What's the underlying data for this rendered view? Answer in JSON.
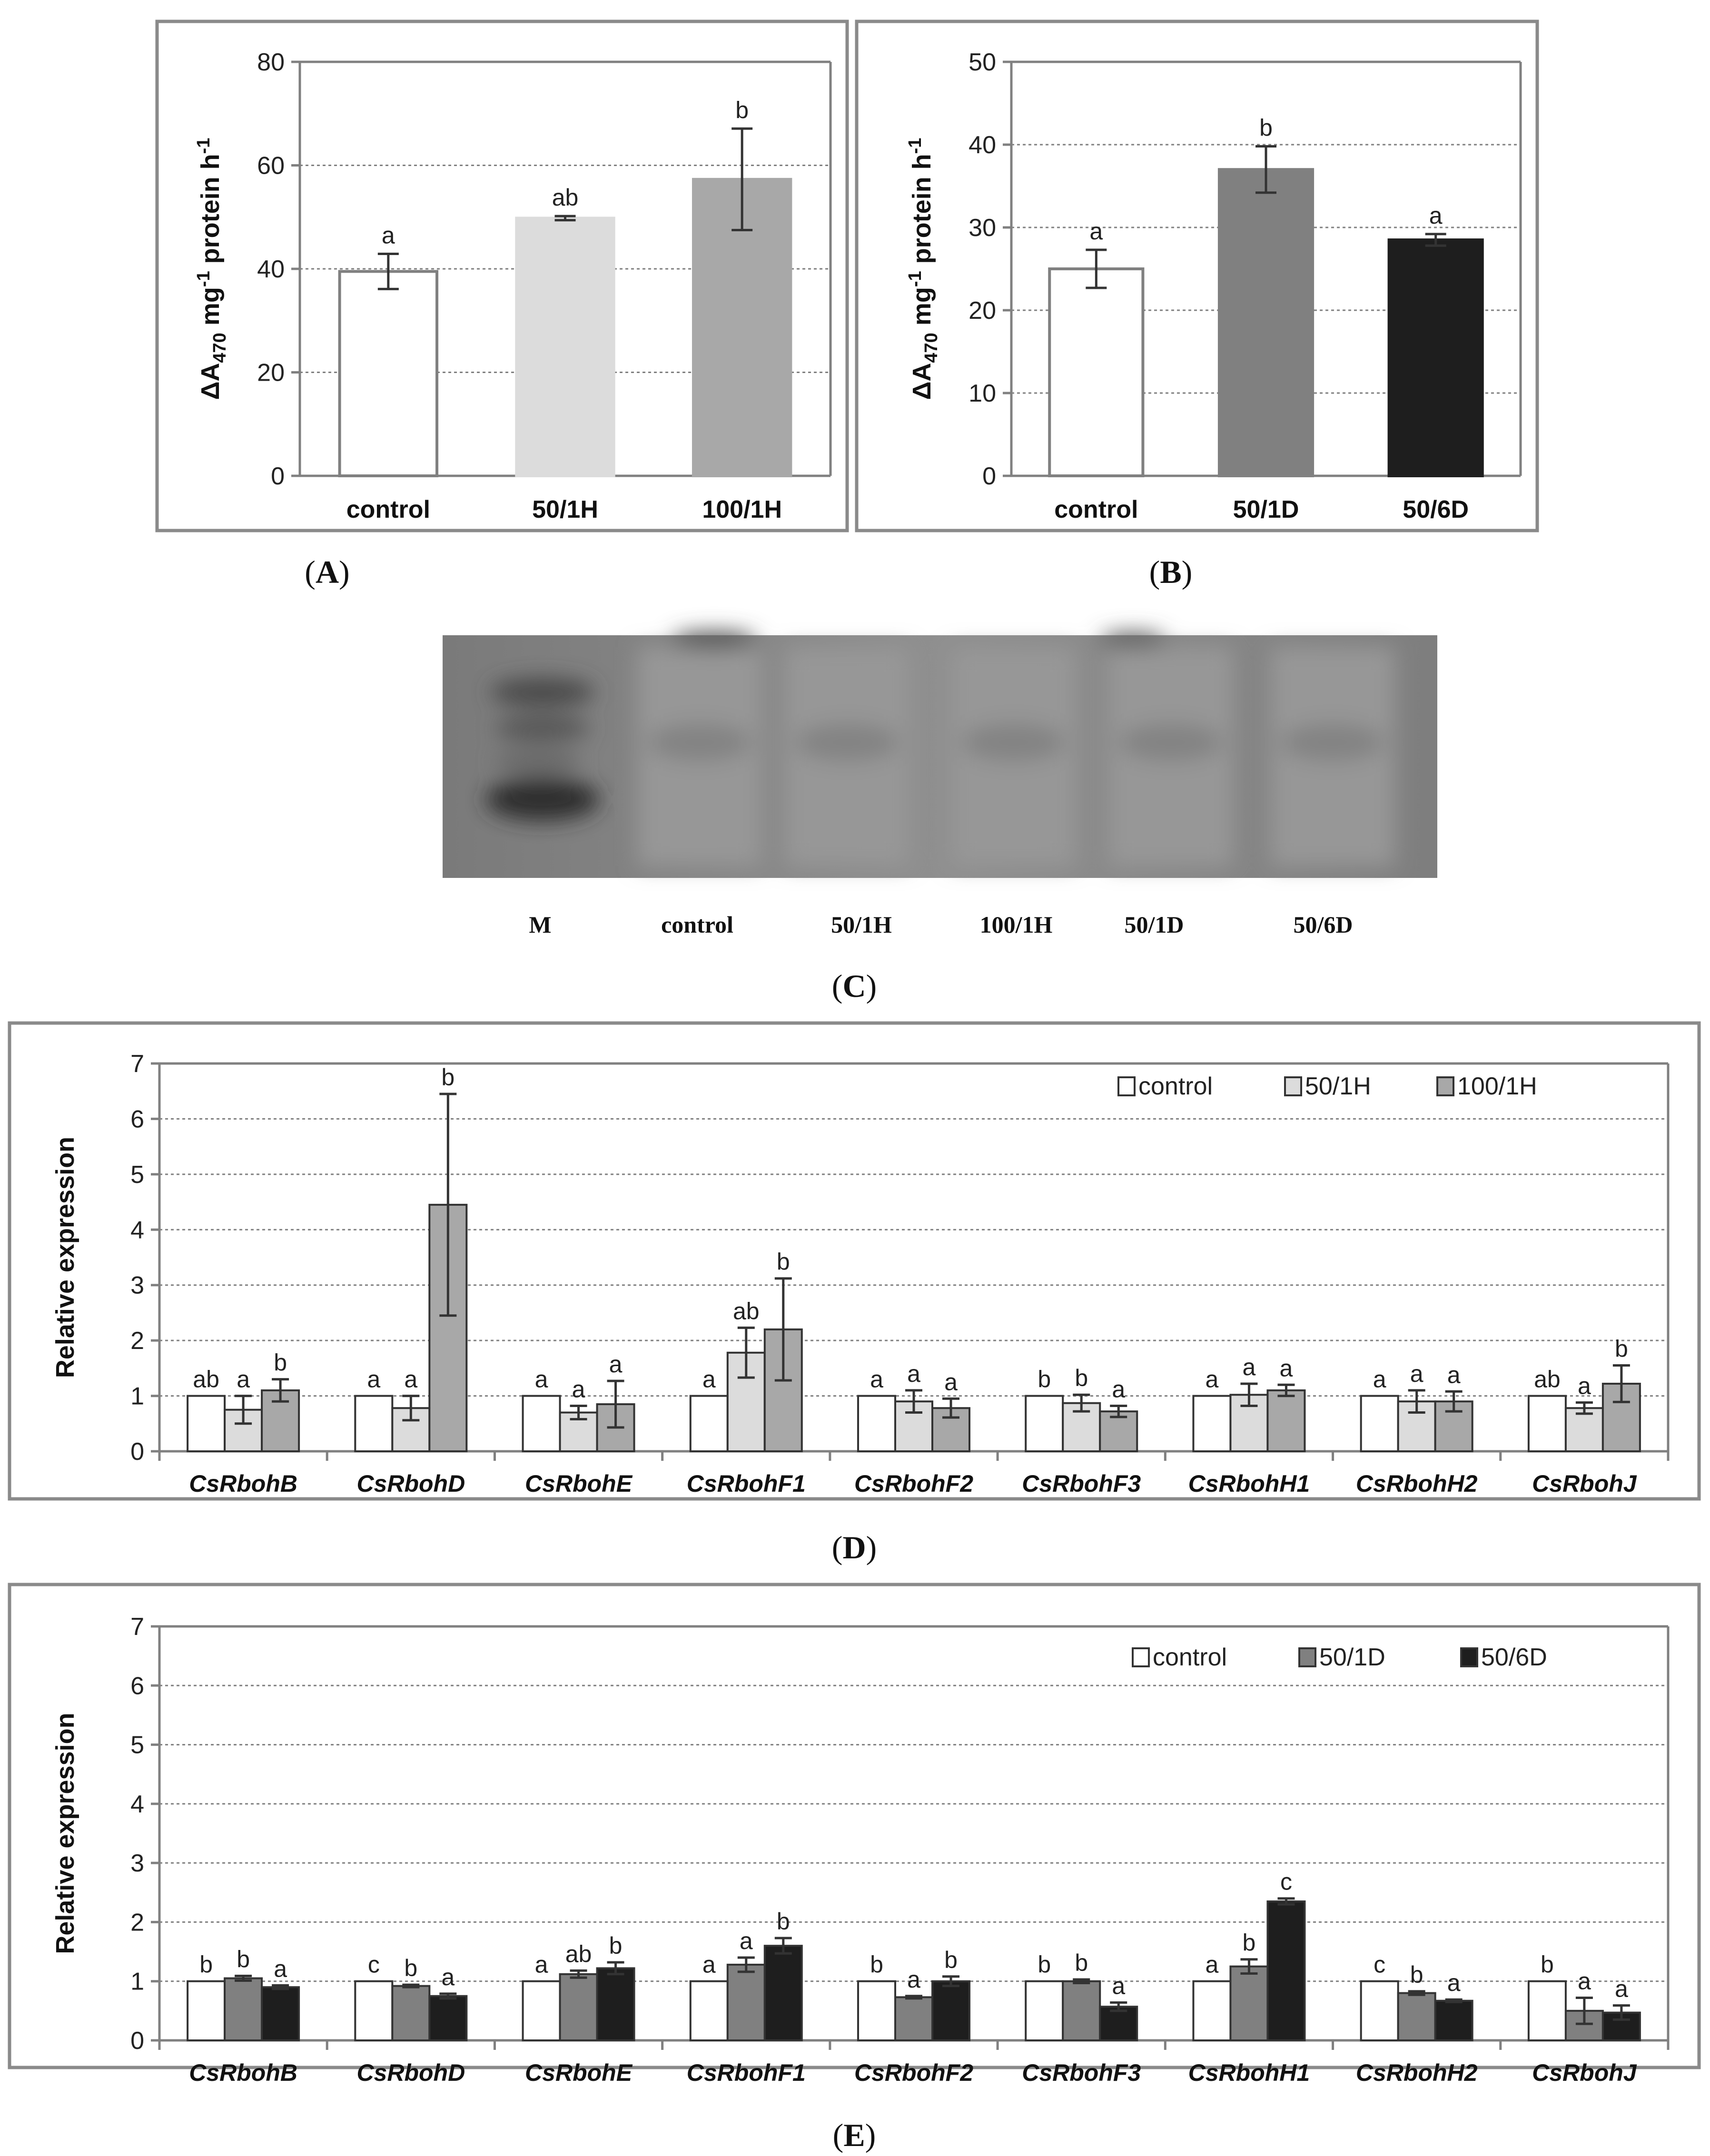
{
  "colors": {
    "control": "#ffffff",
    "h50": "#dcdcdc",
    "h100": "#a8a8a8",
    "d50": "#808080",
    "d6": "#1e1e1e",
    "gel_background": "#8c8c8c",
    "gel_band": "#3c3c3c"
  },
  "chart_data": [
    {
      "id": "A",
      "type": "bar",
      "caption": "A",
      "ylabel_main": "ΔA",
      "ylabel_sub": "470",
      "ylabel_rest1": " mg",
      "ylabel_sup": "-1",
      "ylabel_rest2": " protein h",
      "ylabel_sup2": "-1",
      "ylim": [
        0,
        80
      ],
      "yticks": [
        0,
        20,
        40,
        60,
        80
      ],
      "categories": [
        "control",
        "50/1H",
        "100/1H"
      ],
      "values": [
        39.5,
        49.8,
        57.3
      ],
      "errors": [
        3.4,
        0.4,
        9.8
      ],
      "letters": [
        "a",
        "ab",
        "b"
      ],
      "color_keys": [
        "control",
        "h50",
        "h100"
      ]
    },
    {
      "id": "B",
      "type": "bar",
      "caption": "B",
      "ylabel_main": "ΔA",
      "ylabel_sub": "470",
      "ylabel_rest1": " mg",
      "ylabel_sup": "-1",
      "ylabel_rest2": " protein h",
      "ylabel_sup2": "-1",
      "ylim": [
        0,
        50
      ],
      "yticks": [
        0,
        10,
        20,
        30,
        40,
        50
      ],
      "categories": [
        "control",
        "50/1D",
        "50/6D"
      ],
      "values": [
        25.0,
        37.0,
        28.5
      ],
      "errors": [
        2.3,
        2.8,
        0.7
      ],
      "letters": [
        "a",
        "b",
        "a"
      ],
      "color_keys": [
        "control",
        "d50",
        "d6"
      ]
    },
    {
      "id": "D",
      "type": "bar",
      "caption": "D",
      "ylabel": "Relative expression",
      "ylim": [
        0,
        7
      ],
      "yticks": [
        0,
        1,
        2,
        3,
        4,
        5,
        6,
        7
      ],
      "categories": [
        "CsRbohB",
        "CsRbohD",
        "CsRbohE",
        "CsRbohF1",
        "CsRbohF2",
        "CsRbohF3",
        "CsRbohH1",
        "CsRbohH2",
        "CsRbohJ"
      ],
      "series": [
        {
          "name": "control",
          "color_key": "control",
          "values": [
            1,
            1,
            1,
            1,
            1,
            1,
            1,
            1,
            1
          ],
          "errors": [
            0,
            0,
            0,
            0,
            0,
            0,
            0,
            0,
            0
          ],
          "letters": [
            "ab",
            "a",
            "a",
            "a",
            "a",
            "b",
            "a",
            "a",
            "ab"
          ]
        },
        {
          "name": "50/1H",
          "color_key": "h50",
          "values": [
            0.75,
            0.78,
            0.7,
            1.78,
            0.9,
            0.87,
            1.02,
            0.9,
            0.78
          ],
          "errors": [
            0.25,
            0.22,
            0.12,
            0.45,
            0.2,
            0.15,
            0.2,
            0.2,
            0.1
          ],
          "letters": [
            "a",
            "a",
            "a",
            "ab",
            "a",
            "b",
            "a",
            "a",
            "a"
          ]
        },
        {
          "name": "100/1H",
          "color_key": "h100",
          "values": [
            1.1,
            4.45,
            0.85,
            2.2,
            0.78,
            0.72,
            1.1,
            0.9,
            1.22
          ],
          "errors": [
            0.2,
            2.0,
            0.42,
            0.92,
            0.17,
            0.1,
            0.1,
            0.18,
            0.33
          ],
          "letters": [
            "b",
            "b",
            "a",
            "b",
            "a",
            "a",
            "a",
            "a",
            "b"
          ]
        }
      ]
    },
    {
      "id": "E",
      "type": "bar",
      "caption": "E",
      "ylabel": "Relative expression",
      "ylim": [
        0,
        7
      ],
      "yticks": [
        0,
        1,
        2,
        3,
        4,
        5,
        6,
        7
      ],
      "categories": [
        "CsRbohB",
        "CsRbohD",
        "CsRbohE",
        "CsRbohF1",
        "CsRbohF2",
        "CsRbohF3",
        "CsRbohH1",
        "CsRbohH2",
        "CsRbohJ"
      ],
      "series": [
        {
          "name": "control",
          "color_key": "control",
          "values": [
            1,
            1,
            1,
            1,
            1,
            1,
            1,
            1,
            1
          ],
          "errors": [
            0,
            0,
            0,
            0,
            0,
            0,
            0,
            0,
            0
          ],
          "letters": [
            "b",
            "c",
            "a",
            "a",
            "b",
            "b",
            "a",
            "c",
            "b"
          ]
        },
        {
          "name": "50/1D",
          "color_key": "d50",
          "values": [
            1.05,
            0.92,
            1.12,
            1.28,
            0.73,
            1.0,
            1.25,
            0.8,
            0.5
          ],
          "errors": [
            0.04,
            0.02,
            0.06,
            0.12,
            0.02,
            0.03,
            0.12,
            0.03,
            0.22
          ],
          "letters": [
            "b",
            "b",
            "ab",
            "a",
            "a",
            "b",
            "b",
            "b",
            "a"
          ]
        },
        {
          "name": "50/6D",
          "color_key": "d6",
          "values": [
            0.9,
            0.75,
            1.22,
            1.6,
            1.0,
            0.57,
            2.35,
            0.67,
            0.47
          ],
          "errors": [
            0.03,
            0.04,
            0.1,
            0.13,
            0.08,
            0.07,
            0.05,
            0.02,
            0.12
          ],
          "letters": [
            "a",
            "a",
            "b",
            "b",
            "b",
            "a",
            "c",
            "a",
            "a"
          ]
        }
      ]
    }
  ],
  "gel": {
    "caption": "C",
    "lanes": [
      "M",
      "control",
      "50/1H",
      "100/1H",
      "50/1D",
      "50/6D"
    ]
  }
}
